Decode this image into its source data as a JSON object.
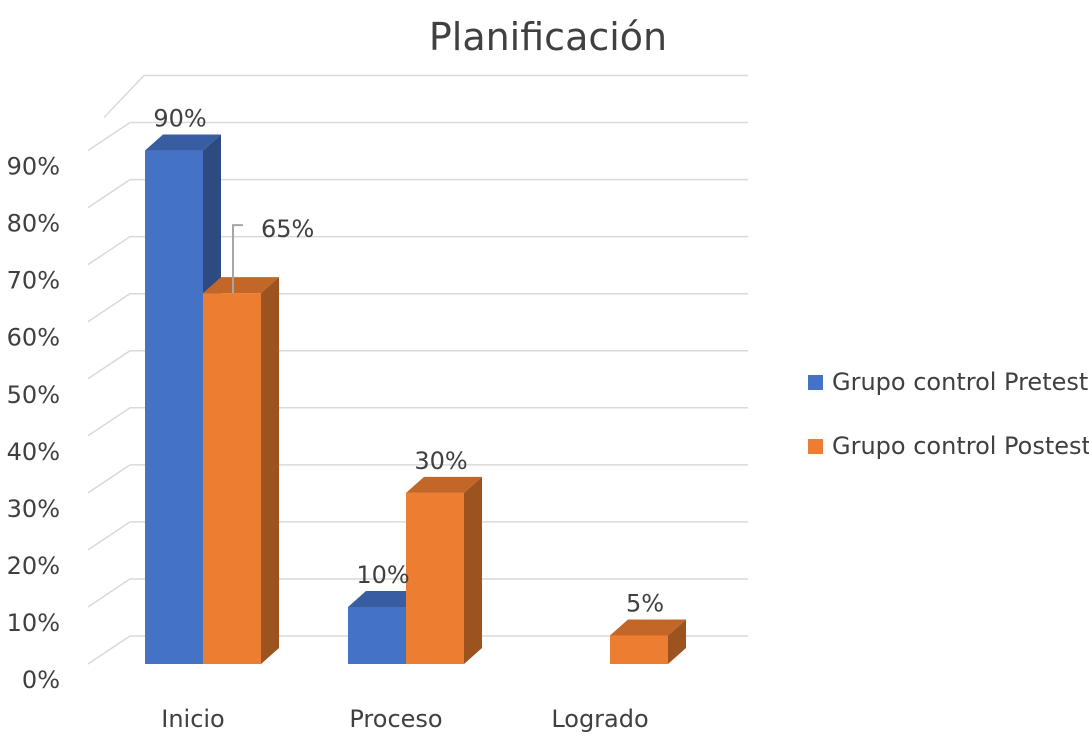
{
  "chart_data": {
    "type": "bar",
    "title": "Planificación",
    "categories": [
      "Inicio",
      "Proceso",
      "Logrado"
    ],
    "series": [
      {
        "name": "Grupo control Pretest",
        "values": [
          90,
          10,
          0
        ],
        "color": "#4472C4",
        "data_labels": [
          "90%",
          "10%",
          null
        ]
      },
      {
        "name": "Grupo control Postest",
        "values": [
          65,
          30,
          5
        ],
        "color": "#ED7D31",
        "data_labels": [
          "65%",
          "30%",
          "5%"
        ]
      }
    ],
    "y_ticks": [
      "0%",
      "10%",
      "20%",
      "30%",
      "40%",
      "50%",
      "60%",
      "70%",
      "80%",
      "90%"
    ],
    "ylim": [
      0,
      90
    ],
    "grid": true,
    "style": "3d-clustered-column",
    "legend": "right"
  }
}
